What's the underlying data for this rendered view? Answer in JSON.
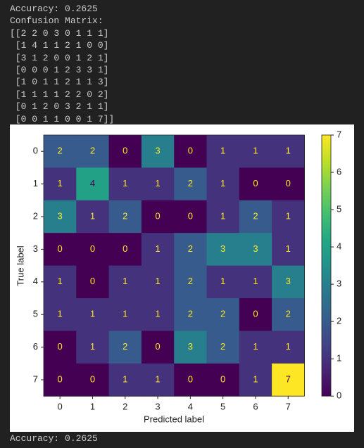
{
  "console": {
    "lines": [
      "Accuracy: 0.2625",
      "Confusion Matrix:",
      "[[2 2 0 3 0 1 1 1]",
      " [1 4 1 1 2 1 0 0]",
      " [3 1 2 0 0 1 2 1]",
      " [0 0 0 1 2 3 3 1]",
      " [1 0 1 1 2 1 1 3]",
      " [1 1 1 1 2 2 0 2]",
      " [0 1 2 0 3 2 1 1]",
      " [0 0 1 1 0 0 1 7]]"
    ],
    "footer": "Accuracy: 0.2625"
  },
  "chart_data": {
    "type": "heatmap",
    "colormap": "viridis",
    "x_categories": [
      "0",
      "1",
      "2",
      "3",
      "4",
      "5",
      "6",
      "7"
    ],
    "y_categories": [
      "0",
      "1",
      "2",
      "3",
      "4",
      "5",
      "6",
      "7"
    ],
    "xlabel": "Predicted label",
    "ylabel": "True label",
    "values": [
      [
        2,
        2,
        0,
        3,
        0,
        1,
        1,
        1
      ],
      [
        1,
        4,
        1,
        1,
        2,
        1,
        0,
        0
      ],
      [
        3,
        1,
        2,
        0,
        0,
        1,
        2,
        1
      ],
      [
        0,
        0,
        0,
        1,
        2,
        3,
        3,
        1
      ],
      [
        1,
        0,
        1,
        1,
        2,
        1,
        1,
        3
      ],
      [
        1,
        1,
        1,
        1,
        2,
        2,
        0,
        2
      ],
      [
        0,
        1,
        2,
        0,
        3,
        2,
        1,
        1
      ],
      [
        0,
        0,
        1,
        1,
        0,
        0,
        1,
        7
      ]
    ],
    "zlim": [
      0,
      7
    ],
    "zticks": [
      0,
      1,
      2,
      3,
      4,
      5,
      6,
      7
    ]
  }
}
